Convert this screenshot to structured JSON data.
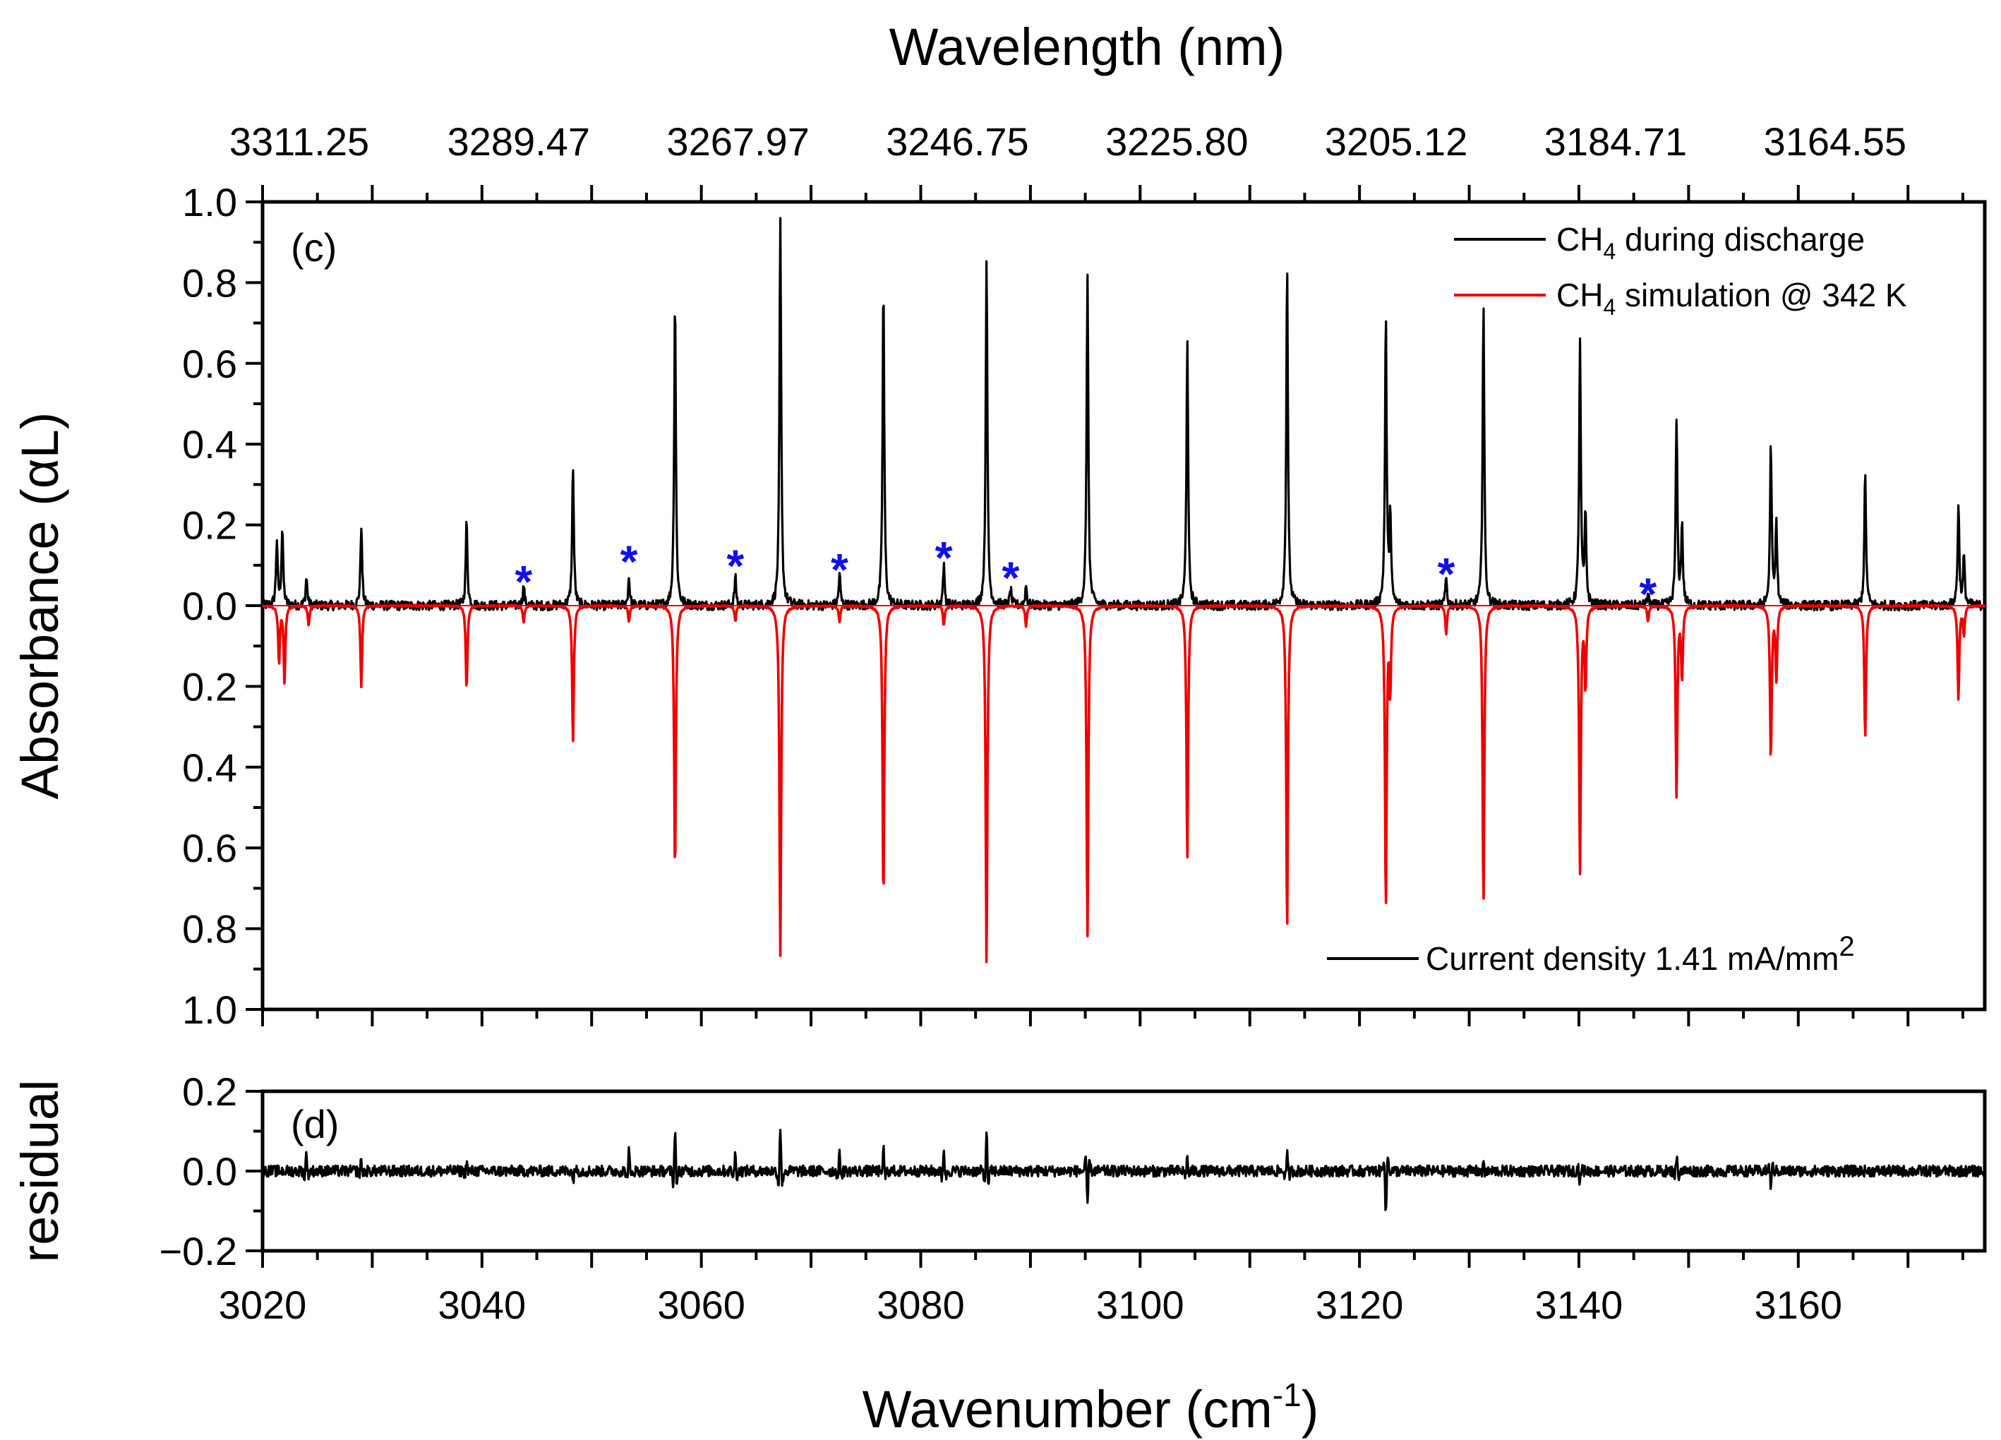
{
  "chart_data": {
    "type": "line",
    "title": "",
    "xlabel": "Wavenumber (cm",
    "xlabel_sup": "-1",
    "xlabel_end": ")",
    "x_range": [
      3020,
      3177
    ],
    "x_ticks": [
      3020,
      3040,
      3060,
      3080,
      3100,
      3120,
      3140,
      3160
    ],
    "x2label": "Wavelength (nm)",
    "x2_tick_positions": [
      3020,
      3040,
      3060,
      3080,
      3100,
      3120,
      3140,
      3160
    ],
    "x2_tick_labels": [
      "3311.25",
      "3289.47",
      "3267.97",
      "3246.75",
      "3225.80",
      "3205.12",
      "3184.71",
      "3164.55"
    ],
    "main_panel": {
      "label": "(c)",
      "ylabel": "Absorbance (αL)",
      "ylim": [
        -1.0,
        1.0
      ],
      "y_ticks": [
        1.0,
        0.8,
        0.6,
        0.4,
        0.2,
        0.0,
        -0.2,
        -0.4,
        -0.6,
        -0.8,
        -1.0
      ],
      "y_tick_labels": [
        "1.0",
        "0.8",
        "0.6",
        "0.4",
        "0.2",
        "0.0",
        "0.2",
        "0.4",
        "0.6",
        "0.8",
        "1.0"
      ],
      "series": [
        {
          "name": "CH4 during discharge",
          "legend_main": "CH",
          "legend_sub": "4",
          "legend_rest": " during discharge",
          "color": "#000000",
          "direction": 1,
          "peaks": [
            [
              3021.3,
              0.16
            ],
            [
              3021.8,
              0.19
            ],
            [
              3024,
              0.07
            ],
            [
              3029,
              0.2
            ],
            [
              3038.6,
              0.21
            ],
            [
              3048.3,
              0.35
            ],
            [
              3057.6,
              0.77
            ],
            [
              3067.2,
              0.96
            ],
            [
              3076.6,
              0.8
            ],
            [
              3086,
              0.87
            ],
            [
              3095.2,
              0.82
            ],
            [
              3104.3,
              0.67
            ],
            [
              3113.4,
              0.85
            ],
            [
              3122.4,
              0.71
            ],
            [
              3122.8,
              0.22
            ],
            [
              3131.3,
              0.75
            ],
            [
              3140.1,
              0.66
            ],
            [
              3140.6,
              0.22
            ],
            [
              3148.9,
              0.46
            ],
            [
              3149.4,
              0.2
            ],
            [
              3157.5,
              0.4
            ],
            [
              3158,
              0.2
            ],
            [
              3166.1,
              0.33
            ],
            [
              3174.6,
              0.25
            ],
            [
              3175.1,
              0.12
            ],
            [
              3043.8,
              0.05
            ],
            [
              3053.4,
              0.07
            ],
            [
              3063.1,
              0.07
            ],
            [
              3072.6,
              0.08
            ],
            [
              3082.1,
              0.1
            ],
            [
              3088.2,
              0.04
            ],
            [
              3089.6,
              0.05
            ],
            [
              3127.9,
              0.07
            ],
            [
              3146.3,
              0.03
            ]
          ]
        },
        {
          "name": "CH4 simulation @ 342 K",
          "legend_main": "CH",
          "legend_sub": "4",
          "legend_rest": " simulation @ 342 K",
          "color": "#ee0000",
          "direction": -1,
          "peaks": [
            [
              3021.5,
              0.14
            ],
            [
              3022,
              0.19
            ],
            [
              3024.2,
              0.05
            ],
            [
              3029,
              0.2
            ],
            [
              3038.6,
              0.21
            ],
            [
              3048.3,
              0.34
            ],
            [
              3057.6,
              0.67
            ],
            [
              3067.2,
              0.87
            ],
            [
              3076.6,
              0.74
            ],
            [
              3086,
              0.89
            ],
            [
              3095.2,
              0.82
            ],
            [
              3104.3,
              0.63
            ],
            [
              3113.4,
              0.81
            ],
            [
              3122.4,
              0.75
            ],
            [
              3122.8,
              0.2
            ],
            [
              3131.3,
              0.74
            ],
            [
              3140.1,
              0.66
            ],
            [
              3140.6,
              0.2
            ],
            [
              3148.9,
              0.47
            ],
            [
              3149.4,
              0.18
            ],
            [
              3157.5,
              0.38
            ],
            [
              3158,
              0.18
            ],
            [
              3166.1,
              0.33
            ],
            [
              3174.6,
              0.23
            ],
            [
              3175.1,
              0.07
            ],
            [
              3043.8,
              0.04
            ],
            [
              3053.4,
              0.04
            ],
            [
              3063.1,
              0.04
            ],
            [
              3072.6,
              0.04
            ],
            [
              3082.1,
              0.05
            ],
            [
              3089.6,
              0.05
            ],
            [
              3127.9,
              0.07
            ],
            [
              3146.3,
              0.04
            ]
          ]
        }
      ],
      "annotation": {
        "text": "Current density 1.41 mA/mm",
        "sup": "2"
      },
      "markers": {
        "symbol": "*",
        "color": "#1010ee",
        "points": [
          [
            3043.8,
            0.08
          ],
          [
            3053.4,
            0.13
          ],
          [
            3063.1,
            0.12
          ],
          [
            3072.6,
            0.11
          ],
          [
            3082.1,
            0.14
          ],
          [
            3088.2,
            0.09
          ],
          [
            3127.9,
            0.1
          ],
          [
            3146.3,
            0.05
          ]
        ]
      }
    },
    "residual_panel": {
      "label": "(d)",
      "ylabel": "residual",
      "ylim": [
        -0.2,
        0.2
      ],
      "y_ticks": [
        0.2,
        0.0,
        -0.2
      ],
      "y_tick_labels": [
        "0.2",
        "0.0",
        "−0.2"
      ],
      "color": "#000000",
      "features": [
        [
          3024,
          0.045
        ],
        [
          3029,
          0.025
        ],
        [
          3038.6,
          0.02
        ],
        [
          3048.3,
          -0.03
        ],
        [
          3053.4,
          0.05
        ],
        [
          3057.6,
          0.1
        ],
        [
          3063.1,
          0.045
        ],
        [
          3067.2,
          0.11
        ],
        [
          3072.6,
          0.04
        ],
        [
          3076.6,
          0.06
        ],
        [
          3082.1,
          0.055
        ],
        [
          3086,
          0.09
        ],
        [
          3095.2,
          -0.08
        ],
        [
          3104.3,
          0.03
        ],
        [
          3113.4,
          0.04
        ],
        [
          3122.4,
          -0.11
        ],
        [
          3131.3,
          0.03
        ],
        [
          3140.1,
          -0.03
        ],
        [
          3148.9,
          0.035
        ],
        [
          3157.5,
          -0.035
        ]
      ]
    }
  }
}
